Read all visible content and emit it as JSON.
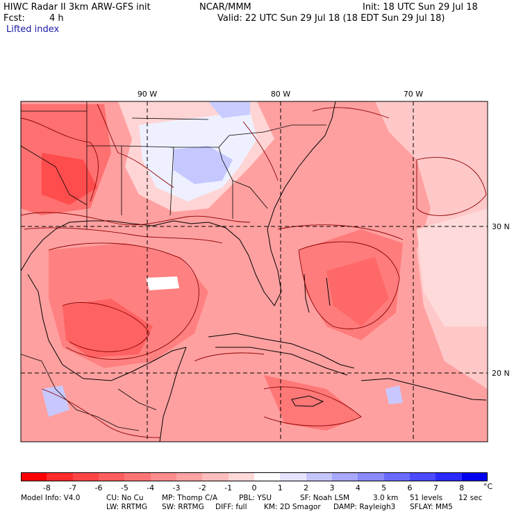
{
  "header": {
    "title": "HIWC Radar II 3km ARW-GFS init",
    "center": "NCAR/MMM",
    "init_label": "Init: 18 UTC Sun 29 Jul 18",
    "fcst_label": "Fcst:",
    "fcst_value": "4 h",
    "valid_label": "Valid: 22 UTC Sun 29 Jul 18 (18 EDT Sun 29 Jul 18)",
    "field_name": "Lifted index"
  },
  "map": {
    "lon_labels": [
      "90 W",
      "80 W",
      "70 W"
    ],
    "lat_labels": [
      "30 N",
      "20 N"
    ]
  },
  "colorbar": {
    "labels": [
      "-8",
      "-7",
      "-6",
      "-5",
      "-4",
      "-3",
      "-2",
      "-1",
      "0",
      "1",
      "2",
      "3",
      "4",
      "5",
      "6",
      "7",
      "8"
    ],
    "unit": "°C",
    "colors": [
      "#ff0000",
      "#ff2a2a",
      "#ff4545",
      "#ff5e5e",
      "#ff7575",
      "#ff8c8c",
      "#ffa3a3",
      "#ffbdbd",
      "#ffd8d8",
      "#ffffff",
      "#e4e4ff",
      "#c6c6ff",
      "#a8a8ff",
      "#8a8aff",
      "#6a6aff",
      "#4a4aff",
      "#2a2aff",
      "#0000f0"
    ]
  },
  "footer": {
    "line1": [
      "Model Info: V4.0",
      "CU: No Cu",
      "MP: Thomp C/A",
      "PBL: YSU",
      "SF: Noah LSM",
      "3.0 km",
      "51 levels",
      "12 sec"
    ],
    "line2": [
      "LW: RRTMG",
      "SW: RRTMG",
      "DIFF: full",
      "KM: 2D Smagor",
      "DAMP: Rayleigh3",
      "SFLAY: MM5"
    ]
  }
}
